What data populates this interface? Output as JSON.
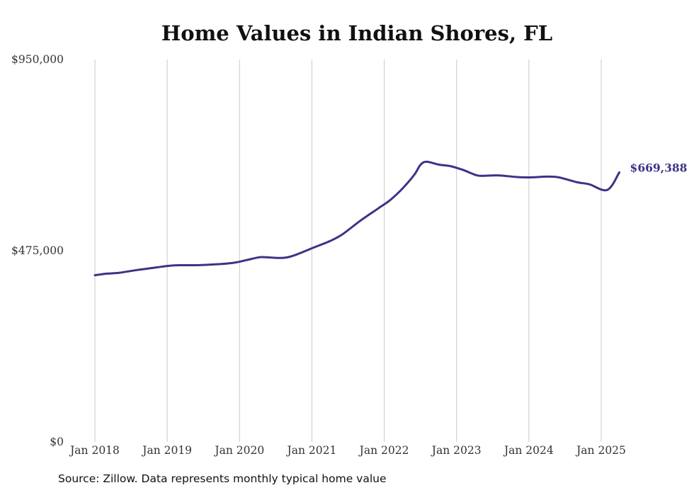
{
  "chart_data": {
    "type": "line",
    "title": "Home Values in Indian Shores, FL",
    "xlabel": "",
    "ylabel": "",
    "source": "Source: Zillow. Data represents monthly typical home value",
    "ylim": [
      0,
      950000
    ],
    "y_ticks": [
      {
        "value": 0,
        "label": "$0"
      },
      {
        "value": 475000,
        "label": "$475,000"
      },
      {
        "value": 950000,
        "label": "$950,000"
      }
    ],
    "x_ticks": [
      {
        "value": "2018-01",
        "label": "Jan 2018"
      },
      {
        "value": "2019-01",
        "label": "Jan 2019"
      },
      {
        "value": "2020-01",
        "label": "Jan 2020"
      },
      {
        "value": "2021-01",
        "label": "Jan 2021"
      },
      {
        "value": "2022-01",
        "label": "Jan 2022"
      },
      {
        "value": "2023-01",
        "label": "Jan 2023"
      },
      {
        "value": "2024-01",
        "label": "Jan 2024"
      },
      {
        "value": "2025-01",
        "label": "Jan 2025"
      }
    ],
    "grid": "vertical",
    "line_color": "#3b3486",
    "end_label": "$669,388",
    "series": [
      {
        "x": [
          "2018-01",
          "2018-03",
          "2018-05",
          "2018-08",
          "2018-10",
          "2019-01",
          "2019-03",
          "2019-06",
          "2019-09",
          "2019-12",
          "2020-02",
          "2020-04",
          "2020-05",
          "2020-08",
          "2020-10",
          "2021-01",
          "2021-04",
          "2021-06",
          "2021-09",
          "2021-12",
          "2022-02",
          "2022-04",
          "2022-06",
          "2022-07",
          "2022-08",
          "2022-10",
          "2022-12",
          "2023-02",
          "2023-04",
          "2023-05",
          "2023-08",
          "2023-11",
          "2024-01",
          "2024-04",
          "2024-06",
          "2024-09",
          "2024-11",
          "2025-02",
          "2025-04"
        ],
        "y": [
          414000,
          418000,
          420000,
          427000,
          431000,
          437000,
          439000,
          439000,
          441000,
          445000,
          451000,
          458000,
          459000,
          457000,
          463000,
          481000,
          499000,
          515000,
          549000,
          580000,
          601000,
          629000,
          664000,
          688000,
          696000,
          689000,
          685000,
          676000,
          664000,
          661000,
          662000,
          658000,
          657000,
          659000,
          657000,
          645000,
          640000,
          626000,
          669388
        ]
      }
    ]
  }
}
